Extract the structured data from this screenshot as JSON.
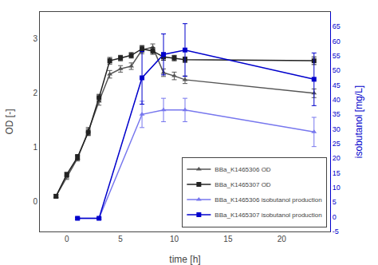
{
  "chart_data": {
    "type": "line",
    "xlabel": "time [h]",
    "ylabel": "OD [-]",
    "y2label": "isobutanol [mg/L]",
    "xlim": [
      -2.5,
      24.5
    ],
    "xticks": [
      0,
      5,
      10,
      15,
      20
    ],
    "ylim": [
      -0.55,
      3.5
    ],
    "yticks": [
      0,
      1,
      2,
      3
    ],
    "y2lim": [
      -5,
      70
    ],
    "y2ticks": [
      -5,
      0,
      5,
      10,
      15,
      20,
      25,
      30,
      35,
      40,
      45,
      50,
      55,
      60,
      65
    ],
    "grid": false,
    "legend": "lower right",
    "series": [
      {
        "name": "BBa_K1465306 OD",
        "color": "#555555",
        "marker": "triangle-up",
        "x": [
          -1,
          0,
          1,
          2,
          3,
          4,
          5,
          6,
          7,
          8,
          9,
          10,
          11,
          23
        ],
        "values": [
          0.1,
          0.45,
          0.8,
          1.3,
          1.85,
          2.35,
          2.45,
          2.5,
          2.8,
          2.85,
          2.38,
          2.32,
          2.25,
          2.0
        ],
        "errors": [
          0.03,
          0.04,
          0.05,
          0.07,
          0.07,
          0.07,
          0.06,
          0.06,
          0.07,
          0.06,
          0.07,
          0.07,
          0.07,
          0.08
        ]
      },
      {
        "name": "BBa_K1465307 OD",
        "color": "#222222",
        "marker": "square",
        "x": [
          -1,
          0,
          1,
          2,
          3,
          4,
          5,
          6,
          7,
          8,
          9,
          10,
          11,
          23
        ],
        "values": [
          0.1,
          0.5,
          0.82,
          1.28,
          1.92,
          2.6,
          2.65,
          2.7,
          2.82,
          2.78,
          2.67,
          2.65,
          2.62,
          2.6
        ],
        "errors": [
          0.03,
          0.04,
          0.05,
          0.06,
          0.06,
          0.06,
          0.05,
          0.05,
          0.06,
          0.06,
          0.06,
          0.05,
          0.05,
          0.07
        ]
      },
      {
        "name": "BBa_K1465306 isobutanol production",
        "color": "#7777ee",
        "marker": "triangle-up",
        "axis": "y2",
        "x": [
          1,
          3,
          7,
          9,
          11,
          23
        ],
        "values": [
          -0.5,
          -0.5,
          35.0,
          36.5,
          36.5,
          29.0
        ],
        "errors": [
          0.3,
          0.3,
          4.5,
          4.0,
          4.0,
          5.0
        ]
      },
      {
        "name": "BBa_K1465307 isobutanol production",
        "color": "#0000cc",
        "marker": "square",
        "axis": "y2",
        "x": [
          1,
          3,
          7,
          9,
          11,
          23
        ],
        "values": [
          -0.5,
          -0.5,
          47.5,
          55.5,
          57.0,
          47.0
        ],
        "errors": [
          0.3,
          0.3,
          9.0,
          7.0,
          9.0,
          9.0
        ]
      }
    ]
  }
}
